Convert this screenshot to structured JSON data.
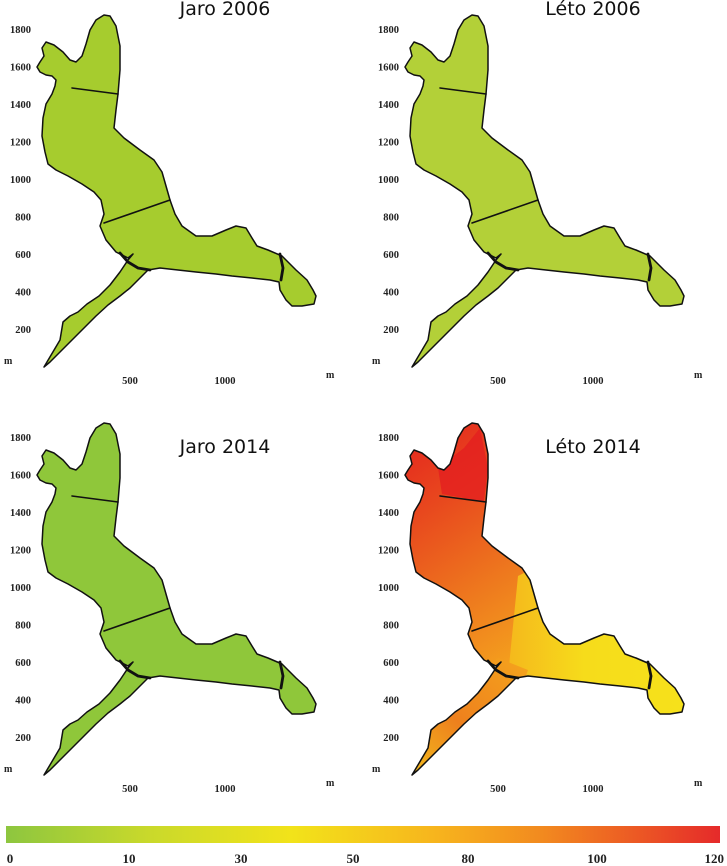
{
  "panels": [
    {
      "title": "Jaro 2006",
      "kind": "uniform",
      "color": "#a6cc2e"
    },
    {
      "title": "Léto 2006",
      "kind": "uniform",
      "color": "#b3d038"
    },
    {
      "title": "Jaro 2014",
      "kind": "uniform",
      "color": "#8fc73a"
    },
    {
      "title": "Léto 2014",
      "kind": "gradient",
      "colors": {
        "north": "#e41f1f",
        "middle": "#ee7a1e",
        "east": "#f6e21b",
        "southwest": "#f28c1a"
      }
    }
  ],
  "axes": {
    "y_ticks": [
      "1800",
      "1600",
      "1400",
      "1200",
      "1000",
      "800",
      "600",
      "400",
      "200"
    ],
    "x_ticks": [
      "500",
      "1000"
    ],
    "y_unit": "m",
    "x_unit": "m"
  },
  "scale": {
    "labels": [
      "0",
      "10",
      "30",
      "50",
      "80",
      "100",
      "120"
    ],
    "colors": [
      "#8dc63f",
      "#c9d92b",
      "#f2e31a",
      "#f7b51d",
      "#f28a1f",
      "#ec5a24",
      "#e52a2a"
    ]
  }
}
